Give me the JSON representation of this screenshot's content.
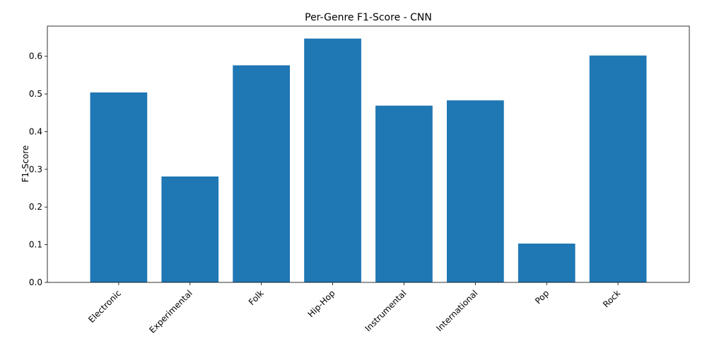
{
  "chart_data": {
    "type": "bar",
    "title": "Per-Genre F1-Score - CNN",
    "xlabel": "",
    "ylabel": "F1-Score",
    "categories": [
      "Electronic",
      "Experimental",
      "Folk",
      "Hip-Hop",
      "Instrumental",
      "International",
      "Pop",
      "Rock"
    ],
    "values": [
      0.504,
      0.281,
      0.576,
      0.647,
      0.469,
      0.483,
      0.103,
      0.602
    ],
    "ylim": [
      0,
      0.68
    ],
    "yticks": [
      0.0,
      0.1,
      0.2,
      0.3,
      0.4,
      0.5,
      0.6
    ],
    "ytick_labels": [
      "0.0",
      "0.1",
      "0.2",
      "0.3",
      "0.4",
      "0.5",
      "0.6"
    ],
    "bar_color": "#1f77b4",
    "grid": false,
    "legend": "none"
  }
}
